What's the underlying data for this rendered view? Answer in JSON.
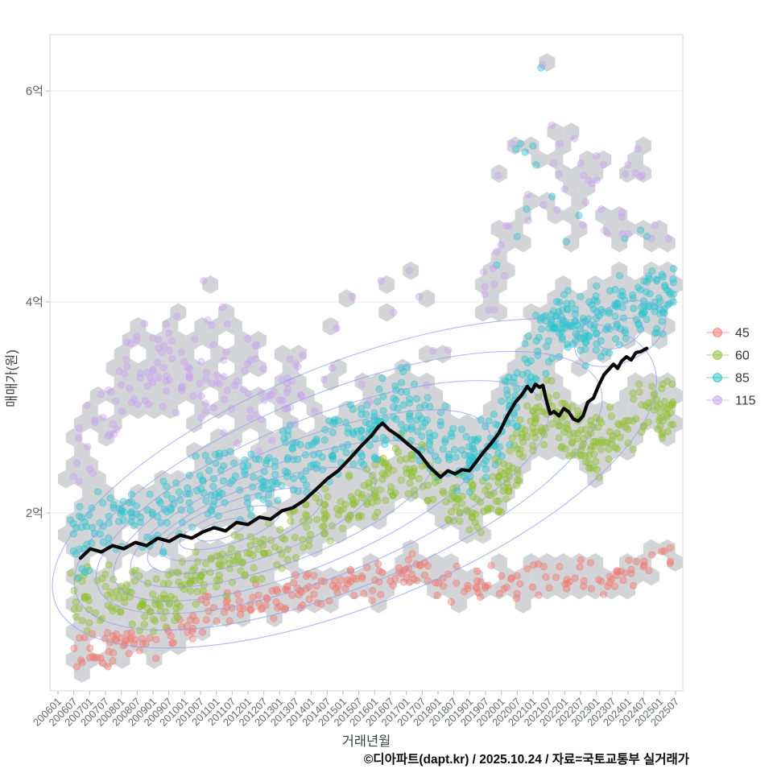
{
  "chart_data": {
    "type": "scatter",
    "title": "",
    "xlabel": "거래년월",
    "ylabel": "매매가(원)",
    "caption": "©디아파트(dapt.kr) / 2025.10.24 / 자료=국토교통부 실거래가",
    "grid": true,
    "legend_position": "right",
    "x_axis": {
      "start_year": 2006.0,
      "end_year": 2025.5,
      "tick_labels": [
        "200601",
        "200607",
        "200701",
        "200707",
        "200801",
        "200807",
        "200901",
        "200907",
        "201001",
        "201007",
        "201101",
        "201107",
        "201201",
        "201207",
        "201301",
        "201307",
        "201401",
        "201407",
        "201501",
        "201507",
        "201601",
        "201607",
        "201701",
        "201707",
        "201801",
        "201807",
        "201901",
        "201907",
        "202001",
        "202007",
        "202101",
        "202107",
        "202201",
        "202207",
        "202301",
        "202307",
        "202401",
        "202407",
        "202501",
        "202507"
      ]
    },
    "y_axis": {
      "unit": "억",
      "range": [
        0.3,
        6.55
      ],
      "ticks": [
        {
          "label": "2억",
          "value": 2
        },
        {
          "label": "4억",
          "value": 4
        },
        {
          "label": "6억",
          "value": 6
        }
      ]
    },
    "legend": {
      "items": [
        {
          "label": "45",
          "color": "#f2756c"
        },
        {
          "label": "60",
          "color": "#8fbf30"
        },
        {
          "label": "85",
          "color": "#29c3ce"
        },
        {
          "label": "115",
          "color": "#c7a3f0"
        }
      ]
    },
    "series": [
      {
        "name": "45",
        "color": "#f2756c",
        "count": 260,
        "spread": 0.13,
        "median": [
          [
            2006.5,
            0.72
          ],
          [
            2007.2,
            0.66
          ],
          [
            2008.0,
            0.72
          ],
          [
            2009.0,
            0.82
          ],
          [
            2010.0,
            0.95
          ],
          [
            2011.0,
            1.08
          ],
          [
            2012.0,
            1.14
          ],
          [
            2013.0,
            1.2
          ],
          [
            2014.0,
            1.27
          ],
          [
            2015.0,
            1.32
          ],
          [
            2016.0,
            1.36
          ],
          [
            2017.0,
            1.43
          ],
          [
            2018.0,
            1.38
          ],
          [
            2019.0,
            1.27
          ],
          [
            2020.0,
            1.32
          ],
          [
            2021.0,
            1.42
          ],
          [
            2022.0,
            1.38
          ],
          [
            2023.0,
            1.33
          ],
          [
            2024.0,
            1.48
          ],
          [
            2025.4,
            1.55
          ]
        ],
        "year_weights": [
          [
            2006.45,
            2018,
            1
          ],
          [
            2018,
            2025.45,
            0.85
          ]
        ],
        "outliers": []
      },
      {
        "name": "60",
        "color": "#8fbf30",
        "count": 600,
        "spread": 0.2,
        "median": [
          [
            2006.5,
            1.15
          ],
          [
            2007.5,
            1.25
          ],
          [
            2008.5,
            1.2
          ],
          [
            2009.3,
            1.1
          ],
          [
            2010.0,
            1.3
          ],
          [
            2011.0,
            1.45
          ],
          [
            2012.0,
            1.58
          ],
          [
            2013.0,
            1.75
          ],
          [
            2014.0,
            1.9
          ],
          [
            2015.0,
            2.02
          ],
          [
            2016.0,
            2.25
          ],
          [
            2016.8,
            2.45
          ],
          [
            2017.5,
            2.4
          ],
          [
            2018.3,
            2.15
          ],
          [
            2019.0,
            2.05
          ],
          [
            2019.7,
            2.15
          ],
          [
            2020.3,
            2.45
          ],
          [
            2021.0,
            2.9
          ],
          [
            2021.6,
            3.0
          ],
          [
            2022.3,
            2.7
          ],
          [
            2023.0,
            2.62
          ],
          [
            2023.8,
            2.8
          ],
          [
            2024.5,
            2.95
          ],
          [
            2025.4,
            3.05
          ]
        ],
        "year_weights": [
          [
            2006.45,
            2016,
            1
          ],
          [
            2016,
            2025.45,
            1.25
          ]
        ],
        "outliers": []
      },
      {
        "name": "85",
        "color": "#29c3ce",
        "count": 650,
        "spread": 0.24,
        "median": [
          [
            2006.5,
            1.7
          ],
          [
            2007.3,
            1.9
          ],
          [
            2008.0,
            2.0
          ],
          [
            2009.0,
            1.92
          ],
          [
            2010.0,
            2.15
          ],
          [
            2011.0,
            2.28
          ],
          [
            2012.0,
            2.3
          ],
          [
            2013.0,
            2.42
          ],
          [
            2014.0,
            2.52
          ],
          [
            2015.0,
            2.65
          ],
          [
            2016.0,
            2.85
          ],
          [
            2017.0,
            3.0
          ],
          [
            2018.0,
            2.7
          ],
          [
            2018.8,
            2.5
          ],
          [
            2019.5,
            2.6
          ],
          [
            2020.2,
            2.95
          ],
          [
            2021.0,
            3.45
          ],
          [
            2021.8,
            3.8
          ],
          [
            2022.5,
            3.75
          ],
          [
            2023.2,
            3.8
          ],
          [
            2024.0,
            3.95
          ],
          [
            2025.4,
            4.05
          ]
        ],
        "year_weights": [
          [
            2006.45,
            2016,
            1
          ],
          [
            2016,
            2020,
            1.25
          ],
          [
            2020,
            2025.45,
            1.5
          ]
        ],
        "outliers": [
          [
            2021.25,
            6.22
          ],
          [
            2020.45,
            5.45
          ],
          [
            2020.6,
            5.5
          ],
          [
            2020.75,
            5.42
          ],
          [
            2021.0,
            5.48
          ],
          [
            2021.1,
            5.3
          ],
          [
            2021.6,
            5.0
          ],
          [
            2020.5,
            4.62
          ],
          [
            2020.8,
            4.88
          ],
          [
            2022.05,
            4.57
          ],
          [
            2022.45,
            4.82
          ],
          [
            2023.9,
            4.6
          ],
          [
            2024.4,
            4.68
          ],
          [
            2024.6,
            4.62
          ],
          [
            2019.85,
            4.35
          ],
          [
            2023.0,
            4.15
          ]
        ]
      },
      {
        "name": "115",
        "color": "#c7a3f0",
        "count": 190,
        "spread": 0.35,
        "median": [
          [
            2006.5,
            2.5
          ],
          [
            2007.5,
            2.95
          ],
          [
            2008.5,
            3.3
          ],
          [
            2009.5,
            3.4
          ],
          [
            2010.5,
            3.3
          ],
          [
            2011.5,
            3.2
          ],
          [
            2012.5,
            3.05
          ],
          [
            2013.5,
            3.25
          ],
          [
            2015.0,
            3.1
          ],
          [
            2017.0,
            3.3
          ],
          [
            2019.0,
            3.6
          ],
          [
            2020.5,
            5.0
          ],
          [
            2021.5,
            5.3
          ],
          [
            2022.5,
            5.1
          ],
          [
            2023.5,
            4.8
          ],
          [
            2024.5,
            5.1
          ],
          [
            2025.3,
            4.8
          ]
        ],
        "year_weights": [
          [
            2006.45,
            2013.8,
            1
          ],
          [
            2013.8,
            2019.3,
            0.12
          ],
          [
            2019.3,
            2025.4,
            0.3
          ]
        ],
        "outliers": [
          [
            2021.3,
            6.25
          ],
          [
            2019.9,
            5.2
          ],
          [
            2020.35,
            5.5
          ],
          [
            2021.85,
            5.5
          ],
          [
            2022.3,
            5.55
          ],
          [
            2022.6,
            5.2
          ],
          [
            2023.35,
            4.65
          ],
          [
            2024.0,
            5.3
          ],
          [
            2024.3,
            5.45
          ],
          [
            2024.45,
            5.2
          ],
          [
            2023.8,
            4.85
          ],
          [
            2020.1,
            4.25
          ],
          [
            2015.3,
            4.05
          ],
          [
            2016.2,
            4.2
          ],
          [
            2016.6,
            3.9
          ],
          [
            2017.1,
            4.3
          ],
          [
            2017.4,
            4.05
          ],
          [
            2014.8,
            3.75
          ],
          [
            2010.6,
            4.2
          ],
          [
            2011.2,
            3.95
          ]
        ]
      }
    ],
    "trend_line": {
      "color": "#050505",
      "points": [
        [
          2006.71,
          1.57
        ],
        [
          2007.02,
          1.66
        ],
        [
          2007.37,
          1.63
        ],
        [
          2007.73,
          1.69
        ],
        [
          2008.08,
          1.66
        ],
        [
          2008.44,
          1.72
        ],
        [
          2008.8,
          1.69
        ],
        [
          2009.15,
          1.76
        ],
        [
          2009.51,
          1.73
        ],
        [
          2009.86,
          1.79
        ],
        [
          2010.22,
          1.76
        ],
        [
          2010.58,
          1.82
        ],
        [
          2010.93,
          1.86
        ],
        [
          2011.29,
          1.83
        ],
        [
          2011.64,
          1.91
        ],
        [
          2012.0,
          1.89
        ],
        [
          2012.36,
          1.96
        ],
        [
          2012.71,
          1.94
        ],
        [
          2013.07,
          2.02
        ],
        [
          2013.42,
          2.05
        ],
        [
          2013.78,
          2.12
        ],
        [
          2014.14,
          2.22
        ],
        [
          2014.49,
          2.32
        ],
        [
          2014.85,
          2.4
        ],
        [
          2015.2,
          2.51
        ],
        [
          2015.56,
          2.63
        ],
        [
          2015.92,
          2.74
        ],
        [
          2016.12,
          2.82
        ],
        [
          2016.25,
          2.85
        ],
        [
          2016.45,
          2.79
        ],
        [
          2016.75,
          2.73
        ],
        [
          2017.06,
          2.65
        ],
        [
          2017.39,
          2.57
        ],
        [
          2017.72,
          2.44
        ],
        [
          2018.08,
          2.34
        ],
        [
          2018.31,
          2.4
        ],
        [
          2018.54,
          2.37
        ],
        [
          2018.76,
          2.41
        ],
        [
          2018.99,
          2.4
        ],
        [
          2019.22,
          2.49
        ],
        [
          2019.42,
          2.57
        ],
        [
          2019.68,
          2.66
        ],
        [
          2019.93,
          2.76
        ],
        [
          2020.19,
          2.92
        ],
        [
          2020.44,
          3.05
        ],
        [
          2020.65,
          3.12
        ],
        [
          2020.82,
          3.2
        ],
        [
          2020.95,
          3.15
        ],
        [
          2021.08,
          3.22
        ],
        [
          2021.21,
          3.19
        ],
        [
          2021.31,
          3.21
        ],
        [
          2021.41,
          3.08
        ],
        [
          2021.54,
          2.94
        ],
        [
          2021.66,
          2.96
        ],
        [
          2021.82,
          2.92
        ],
        [
          2021.97,
          2.99
        ],
        [
          2022.12,
          2.96
        ],
        [
          2022.27,
          2.89
        ],
        [
          2022.43,
          2.87
        ],
        [
          2022.58,
          2.92
        ],
        [
          2022.73,
          3.05
        ],
        [
          2022.91,
          3.09
        ],
        [
          2023.06,
          3.2
        ],
        [
          2023.24,
          3.31
        ],
        [
          2023.39,
          3.36
        ],
        [
          2023.54,
          3.41
        ],
        [
          2023.67,
          3.37
        ],
        [
          2023.8,
          3.44
        ],
        [
          2023.95,
          3.48
        ],
        [
          2024.1,
          3.45
        ],
        [
          2024.25,
          3.52
        ],
        [
          2024.41,
          3.53
        ],
        [
          2024.59,
          3.56
        ]
      ]
    },
    "density_contours": {
      "color": "#92a2ec",
      "ellipses": [
        [
          2015.36,
          2.28,
          10.17,
          1.145,
          -22
        ],
        [
          2014.85,
          2.21,
          8.9,
          0.93,
          -22
        ],
        [
          2014.34,
          2.15,
          7.63,
          0.75,
          -22
        ],
        [
          2013.7,
          2.07,
          6.36,
          0.6,
          -22
        ],
        [
          2013.07,
          1.99,
          5.08,
          0.46,
          -21
        ],
        [
          2012.43,
          1.93,
          3.81,
          0.34,
          -20
        ],
        [
          2011.8,
          1.89,
          2.67,
          0.24,
          -19
        ],
        [
          2011.42,
          1.86,
          1.65,
          0.15,
          -18
        ],
        [
          2011.16,
          1.84,
          0.81,
          0.08,
          -18
        ],
        [
          2023.75,
          3.7,
          1.53,
          0.27,
          -25
        ],
        [
          2023.75,
          3.7,
          0.76,
          0.12,
          -25
        ]
      ]
    },
    "hexbin": {
      "fill": "#c9cbce",
      "opacity": 0.82,
      "radius_px": 11.5
    }
  },
  "style": {
    "grid_color": "#e9e9ec",
    "border_color": "#d4d4d8",
    "tick_color": "#b8b8bc",
    "x_label_color": "#66696e",
    "y_label_color": "#5f6368"
  }
}
